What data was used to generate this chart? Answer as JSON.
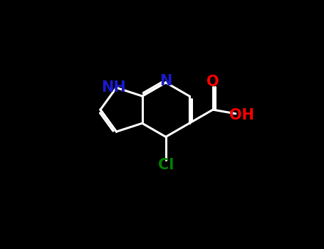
{
  "background_color": "#000000",
  "atom_colors": {
    "N": "#1a1acd",
    "NH": "#1a1acd",
    "O": "#FF0000",
    "OH": "#FF0000",
    "Cl": "#008000",
    "C": "#FFFFFF"
  },
  "bond_color": "#FFFFFF",
  "figsize": [
    4.55,
    3.5
  ],
  "dpi": 100,
  "lw": 2.2,
  "fs": 15
}
